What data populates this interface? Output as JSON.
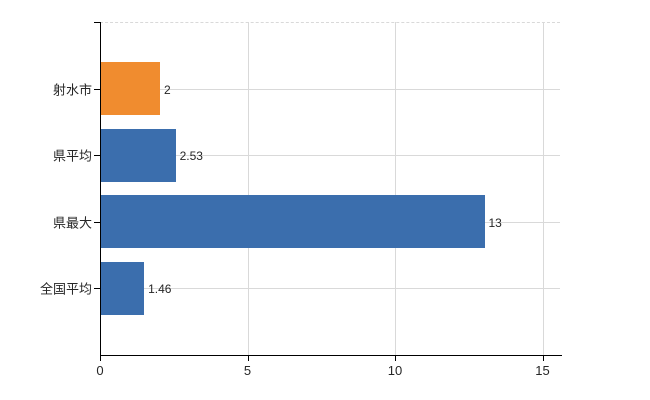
{
  "chart_data": {
    "type": "bar",
    "orientation": "horizontal",
    "title": "",
    "categories": [
      "射水市",
      "県平均",
      "県最大",
      "全国平均"
    ],
    "values": [
      2,
      2.53,
      13,
      1.46
    ],
    "value_labels": [
      "2",
      "2.53",
      "13",
      "1.46"
    ],
    "series": [
      {
        "name": "",
        "values": [
          2,
          2.53,
          13,
          1.46
        ]
      }
    ],
    "bar_colors": [
      "#F08C2F",
      "#3B6EAD",
      "#3B6EAD",
      "#3B6EAD"
    ],
    "x_ticks": [
      0,
      5,
      10,
      15
    ],
    "x_tick_labels": [
      "0",
      "5",
      "10",
      "15"
    ],
    "xlim": [
      0,
      15.6
    ],
    "xlabel": "",
    "ylabel": "",
    "grid": true,
    "legend": false,
    "colors": {
      "axis": "#000000",
      "gridline": "#d9d9d9",
      "text": "#262626",
      "background": "#ffffff"
    }
  }
}
